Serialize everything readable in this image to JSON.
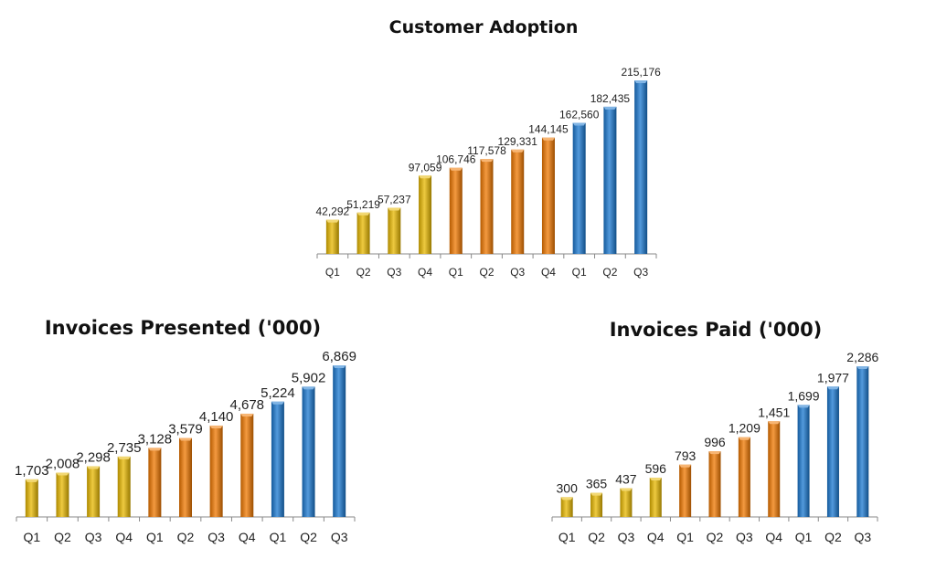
{
  "colors": {
    "year1": "#e8b800",
    "year2": "#f07800",
    "year3": "#1a78d0",
    "axis": "#888888"
  },
  "chart_data": [
    {
      "type": "bar",
      "title": "Customer Adoption",
      "categories": [
        "Q1",
        "Q2",
        "Q3",
        "Q4",
        "Q1",
        "Q2",
        "Q3",
        "Q4",
        "Q1",
        "Q2",
        "Q3"
      ],
      "values": [
        42292,
        51219,
        57237,
        97059,
        106746,
        117578,
        129331,
        144145,
        162560,
        182435,
        215176
      ],
      "value_labels": [
        "42,292",
        "51,219",
        "57,237",
        "97,059",
        "106,746",
        "117,578",
        "129,331",
        "144,145",
        "162,560",
        "182,435",
        "215,176"
      ],
      "bar_groups": [
        "year1",
        "year1",
        "year1",
        "year1",
        "year2",
        "year2",
        "year2",
        "year2",
        "year3",
        "year3",
        "year3"
      ],
      "xlabel": "",
      "ylabel": "",
      "ylim": [
        0,
        215176
      ],
      "grid": false
    },
    {
      "type": "bar",
      "title": "Invoices Presented ('000)",
      "categories": [
        "Q1",
        "Q2",
        "Q3",
        "Q4",
        "Q1",
        "Q2",
        "Q3",
        "Q4",
        "Q1",
        "Q2",
        "Q3"
      ],
      "values": [
        1703,
        2008,
        2298,
        2735,
        3128,
        3579,
        4140,
        4678,
        5224,
        5902,
        6869
      ],
      "value_labels": [
        "1,703",
        "2,008",
        "2,298",
        "2,735",
        "3,128",
        "3,579",
        "4,140",
        "4,678",
        "5,224",
        "5,902",
        "6,869"
      ],
      "bar_groups": [
        "year1",
        "year1",
        "year1",
        "year1",
        "year2",
        "year2",
        "year2",
        "year2",
        "year3",
        "year3",
        "year3"
      ],
      "xlabel": "",
      "ylabel": "",
      "ylim": [
        0,
        6869
      ],
      "grid": false
    },
    {
      "type": "bar",
      "title": "Invoices Paid ('000)",
      "categories": [
        "Q1",
        "Q2",
        "Q3",
        "Q4",
        "Q1",
        "Q2",
        "Q3",
        "Q4",
        "Q1",
        "Q2",
        "Q3"
      ],
      "values": [
        300,
        365,
        437,
        596,
        793,
        996,
        1209,
        1451,
        1699,
        1977,
        2286
      ],
      "value_labels": [
        "300",
        "365",
        "437",
        "596",
        "793",
        "996",
        "1,209",
        "1,451",
        "1,699",
        "1,977",
        "2,286"
      ],
      "bar_groups": [
        "year1",
        "year1",
        "year1",
        "year1",
        "year2",
        "year2",
        "year2",
        "year2",
        "year3",
        "year3",
        "year3"
      ],
      "xlabel": "",
      "ylabel": "",
      "ylim": [
        0,
        2286
      ],
      "grid": false
    }
  ]
}
